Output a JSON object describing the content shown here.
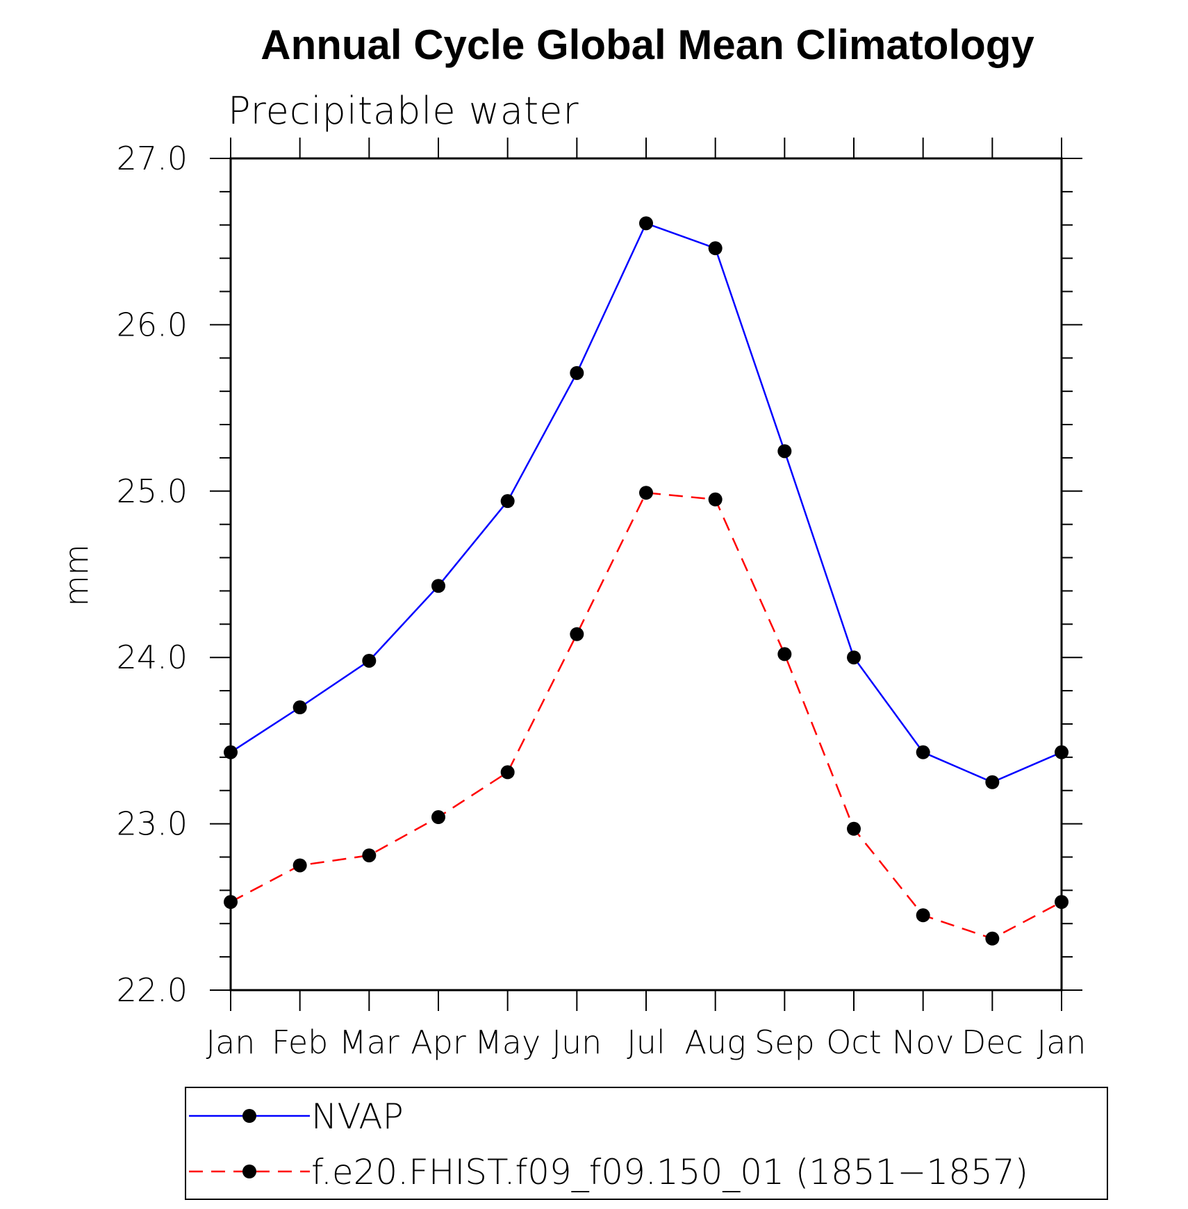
{
  "chart_data": {
    "type": "line",
    "title": "Annual Cycle Global Mean Climatology",
    "subtitle": "Precipitable water",
    "ylabel": "mm",
    "xlabel": "",
    "categories": [
      "Jan",
      "Feb",
      "Mar",
      "Apr",
      "May",
      "Jun",
      "Jul",
      "Aug",
      "Sep",
      "Oct",
      "Nov",
      "Dec",
      "Jan"
    ],
    "ylim": [
      22.0,
      27.0
    ],
    "yticks": [
      "22.0",
      "23.0",
      "24.0",
      "25.0",
      "26.0",
      "27.0"
    ],
    "ytick_values": [
      22.0,
      23.0,
      24.0,
      25.0,
      26.0,
      27.0
    ],
    "y_minor_step": 0.2,
    "series": [
      {
        "name": "NVAP",
        "color": "#0000ff",
        "line_style": "solid",
        "marker": "filled-circle",
        "marker_color": "#000000",
        "values": [
          23.43,
          23.7,
          23.98,
          24.43,
          24.94,
          25.71,
          26.61,
          26.46,
          25.24,
          24.0,
          23.43,
          23.25,
          23.43
        ]
      },
      {
        "name": "f.e20.FHIST.f09_f09.150_01 (1851−1857)",
        "color": "#ff0000",
        "line_style": "dashed",
        "marker": "filled-circle",
        "marker_color": "#000000",
        "values": [
          22.53,
          22.75,
          22.81,
          23.04,
          23.31,
          24.14,
          24.99,
          24.95,
          24.02,
          22.97,
          22.45,
          22.31,
          22.53
        ]
      }
    ],
    "legend_position": "bottom",
    "grid": false
  }
}
